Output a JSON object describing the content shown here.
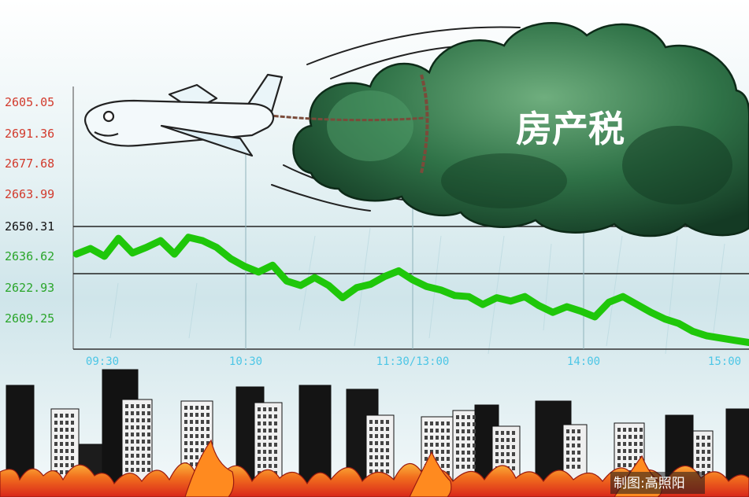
{
  "illustration": {
    "cloud_label": "房产税",
    "credit": "制图:高照阳"
  },
  "colors": {
    "line": "#1fc70a",
    "upper_tick": "#d23a2c",
    "mid_tick": "#111111",
    "lower_tick": "#2aa52a",
    "time_tick": "#4cc6e6",
    "cloud": "#2d7a4a",
    "fire": "#e8441c"
  },
  "chart_data": {
    "type": "line",
    "title": "",
    "xlabel": "",
    "ylabel": "",
    "x_ticks": [
      "09:30",
      "10:30",
      "11:30/13:00",
      "14:00",
      "15:00"
    ],
    "y_ticks": [
      "2605.05",
      "2691.36",
      "2677.68",
      "2663.99",
      "2650.31",
      "2636.62",
      "2622.93",
      "2609.25"
    ],
    "ylim": [
      2595.56,
      2705.05
    ],
    "reference_value": 2650.31,
    "grid": "vertical",
    "series": [
      {
        "x": [
          "09:30",
          "09:35",
          "09:40",
          "09:45",
          "09:50",
          "09:55",
          "10:00",
          "10:05",
          "10:10",
          "10:15",
          "10:20",
          "10:25",
          "10:30",
          "10:35",
          "10:40",
          "10:45",
          "10:50",
          "10:55",
          "11:00",
          "11:05",
          "11:10",
          "11:15",
          "11:20",
          "11:25",
          "11:30/13:00",
          "13:05",
          "13:10",
          "13:15",
          "13:20",
          "13:25",
          "13:30",
          "13:35",
          "13:40",
          "13:45",
          "13:50",
          "13:55",
          "14:00",
          "14:05",
          "14:10",
          "14:15",
          "14:20",
          "14:25",
          "14:30",
          "14:35",
          "14:40",
          "14:45",
          "14:50",
          "14:55",
          "15:00"
        ],
        "values": [
          2638.0,
          2640.5,
          2637.0,
          2645.0,
          2638.5,
          2641.0,
          2644.0,
          2638.0,
          2645.5,
          2644.0,
          2641.0,
          2636.0,
          2632.5,
          2630.0,
          2633.0,
          2626.0,
          2624.0,
          2627.5,
          2624.0,
          2618.5,
          2623.0,
          2624.5,
          2628.0,
          2630.5,
          2626.5,
          2623.5,
          2622.0,
          2619.5,
          2619.0,
          2615.5,
          2618.5,
          2617.0,
          2619.0,
          2615.0,
          2612.0,
          2614.5,
          2612.5,
          2610.0,
          2616.5,
          2619.0,
          2615.5,
          2612.0,
          2609.0,
          2607.0,
          2603.5,
          2601.5,
          2600.5,
          2599.5,
          2598.5
        ]
      }
    ]
  }
}
